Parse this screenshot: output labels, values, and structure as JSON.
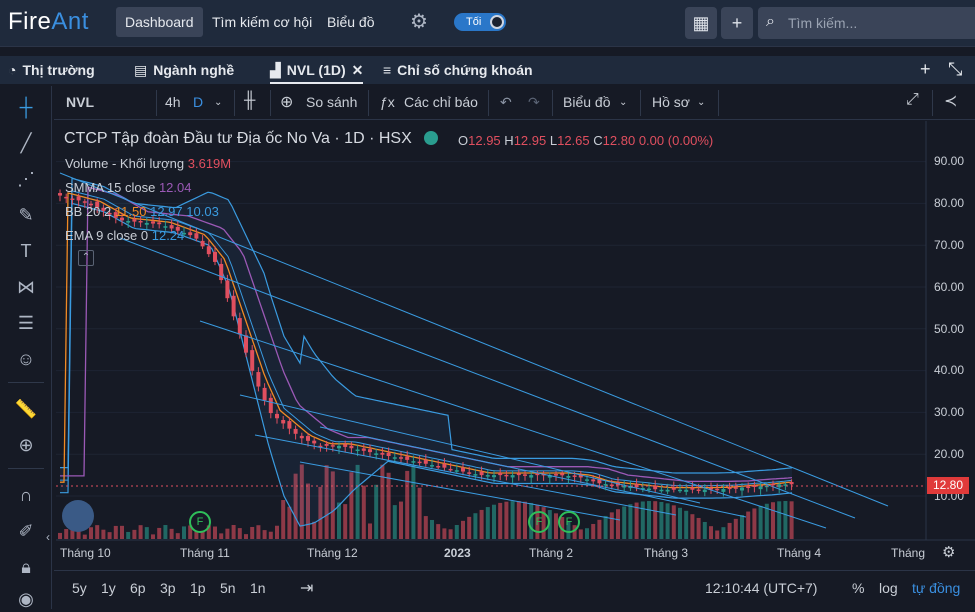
{
  "app": {
    "name_a": "Fire",
    "name_b": "Ant"
  },
  "nav": {
    "dashboard": "Dashboard",
    "search_opps": "Tìm kiếm cơ hội",
    "charts": "Biểu đồ",
    "theme": "Tối",
    "search_placeholder": "Tìm kiếm..."
  },
  "tabs": [
    {
      "label": "Thị trường"
    },
    {
      "label": "Ngành nghề"
    },
    {
      "label": "NVL (1D)",
      "active": true
    },
    {
      "label": "Chỉ số chứng khoán"
    }
  ],
  "chartbar": {
    "symbol": "NVL",
    "tf_4h": "4h",
    "tf_d": "D",
    "compare": "So sánh",
    "indicators": "Các chỉ báo",
    "chart": "Biểu đồ",
    "profile": "Hồ sơ"
  },
  "legend": {
    "title": "CTCP Tập đoàn Đầu tư Địa ốc No Va · 1D · HSX",
    "o_label": "O",
    "o": "12.95",
    "h_label": "H",
    "h": "12.95",
    "l_label": "L",
    "l": "12.65",
    "c_label": "C",
    "c": "12.80",
    "chg": "0.00 (0.00%)",
    "volume_label": "Volume - Khối lượng",
    "volume": "3.619M",
    "smma_label": "SMMA 15 close",
    "smma": "12.04",
    "bb_label": "BB 20 2",
    "bb_mid": "11.50",
    "bb_up": "12.97",
    "bb_low": "10.03",
    "ema_label": "EMA 9 close 0",
    "ema": "12.24"
  },
  "yaxis": [
    "90.00",
    "80.00",
    "70.00",
    "60.00",
    "50.00",
    "40.00",
    "30.00",
    "20.00",
    "10.00"
  ],
  "price_badge": "12.80",
  "xaxis": [
    "Tháng 10",
    "Tháng 11",
    "Tháng 12",
    "2023",
    "Tháng 2",
    "Tháng 3",
    "Tháng 4",
    "Tháng"
  ],
  "bottom": {
    "ranges": [
      "5y",
      "1y",
      "6p",
      "3p",
      "1p",
      "5n",
      "1n"
    ],
    "time": "12:10:44 (UTC+7)",
    "pct": "%",
    "log": "log",
    "auto": "tự đồng"
  },
  "colors": {
    "up": "#2a9d8f",
    "down": "#e04f5f",
    "accent": "#2a77c9",
    "bb": "#3a9be0",
    "smma": "#9b59b6",
    "ema": "#f08a24"
  }
}
